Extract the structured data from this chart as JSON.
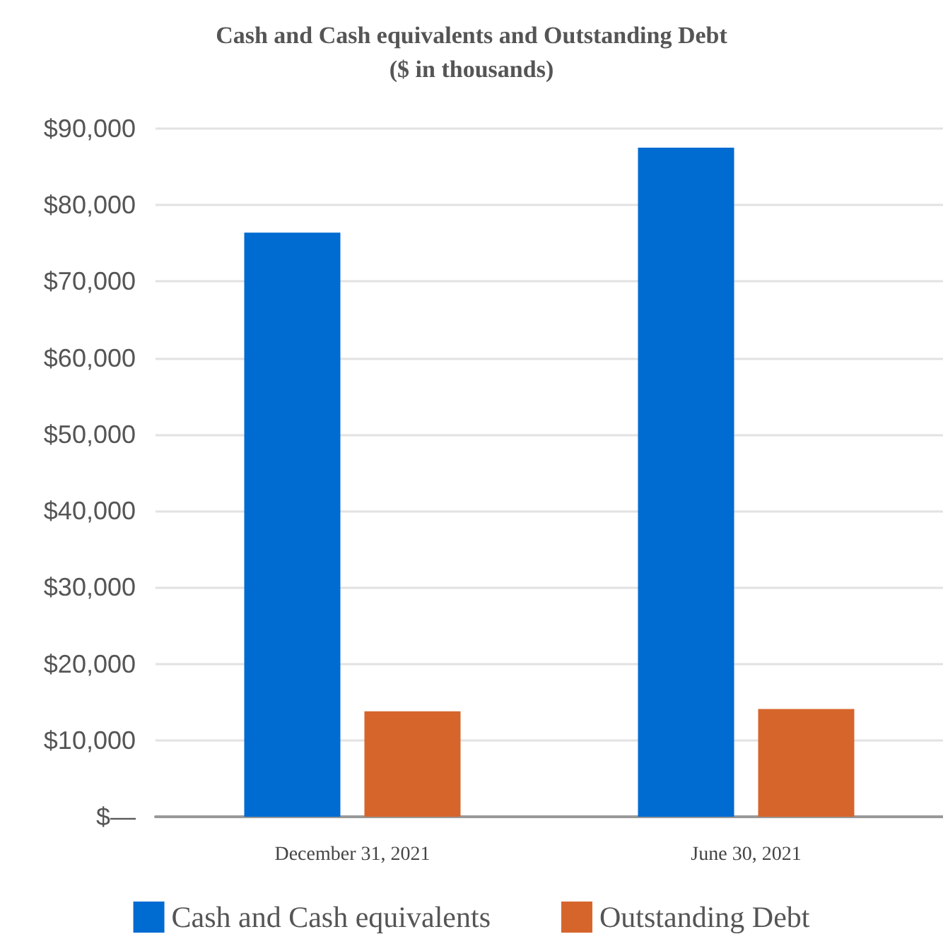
{
  "chart_data": {
    "type": "bar",
    "title": "Cash and Cash equivalents and Outstanding Debt\n($ in thousands)",
    "categories": [
      "December 31, 2021",
      "June 30, 2021"
    ],
    "series": [
      {
        "name": "Cash and Cash equivalents",
        "color": "#006bd1",
        "values": [
          76400,
          87500
        ]
      },
      {
        "name": "Outstanding Debt",
        "color": "#d6652c",
        "values": [
          13800,
          14100
        ]
      }
    ],
    "ylim": [
      0,
      90000
    ],
    "yticks": [
      {
        "value": 0,
        "label": "$—"
      },
      {
        "value": 10000,
        "label": "$10,000"
      },
      {
        "value": 20000,
        "label": "$20,000"
      },
      {
        "value": 30000,
        "label": "$30,000"
      },
      {
        "value": 40000,
        "label": "$40,000"
      },
      {
        "value": 50000,
        "label": "$50,000"
      },
      {
        "value": 60000,
        "label": "$60,000"
      },
      {
        "value": 70000,
        "label": "$70,000"
      },
      {
        "value": 80000,
        "label": "$80,000"
      },
      {
        "value": 90000,
        "label": "$90,000"
      }
    ],
    "grid": "y",
    "legend": "bottom"
  }
}
